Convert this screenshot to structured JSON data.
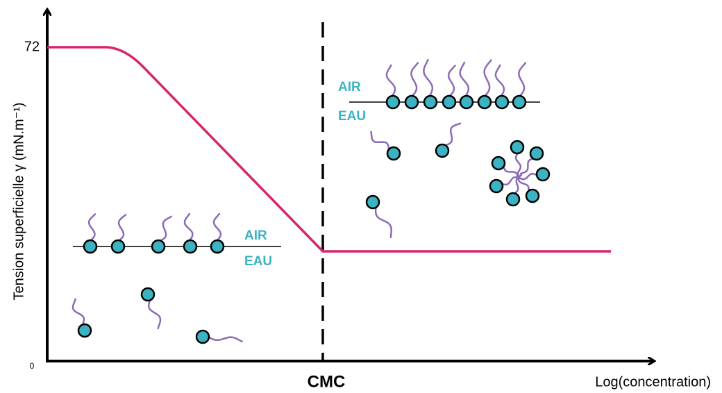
{
  "axes": {
    "y_label": "Tension superficielle γ (mN.m⁻¹)",
    "x_label": "Log(concentration)",
    "y_top": "72",
    "origin": "0",
    "marker": "CMC"
  },
  "left_interface": {
    "top": "AIR",
    "bottom": "EAU"
  },
  "right_interface": {
    "top": "AIR",
    "bottom": "EAU"
  }
}
